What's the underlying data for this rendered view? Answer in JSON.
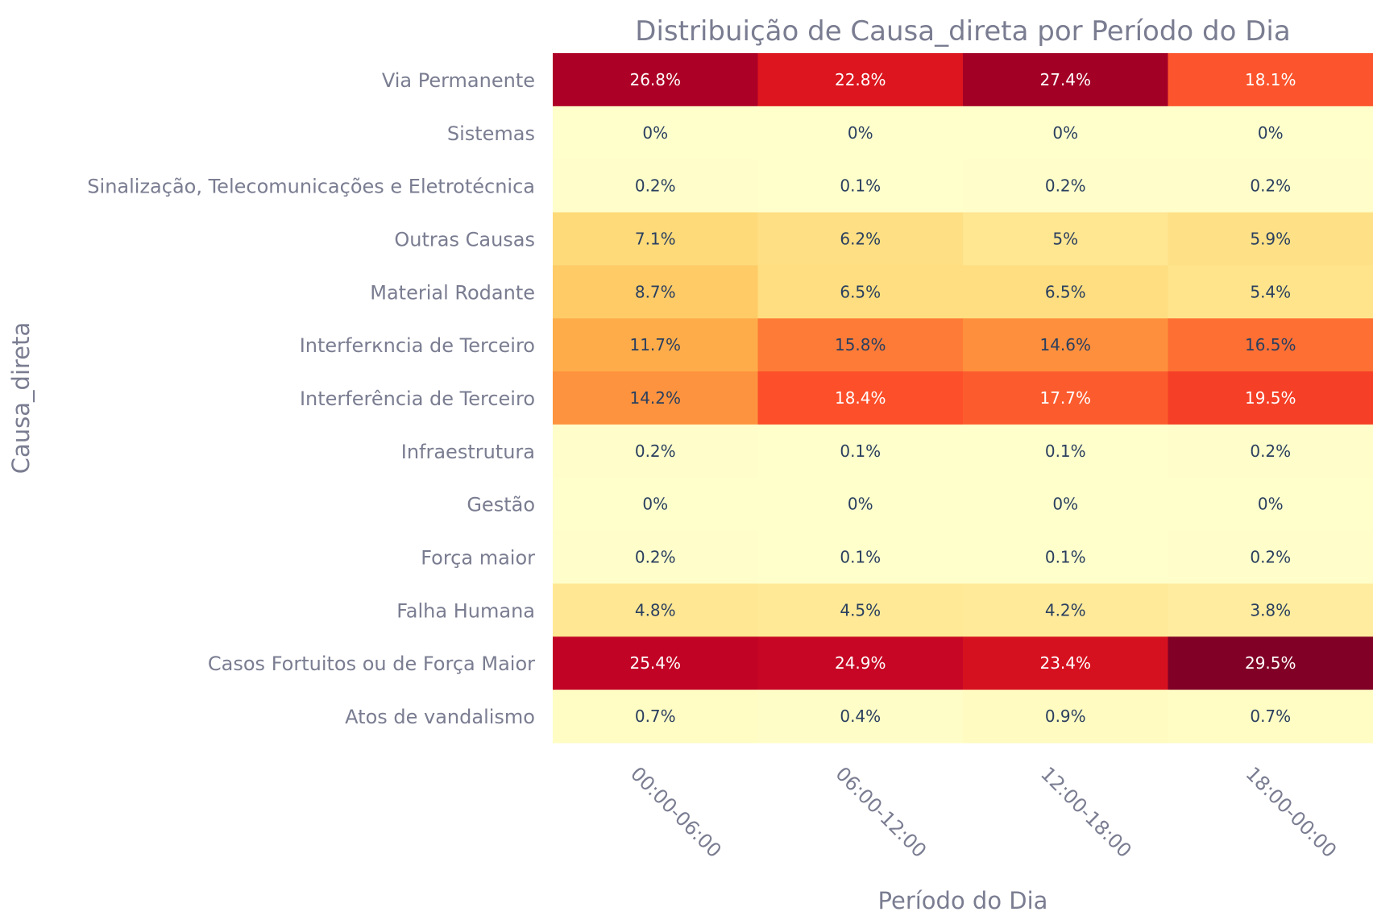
{
  "chart_data": {
    "type": "heatmap",
    "title": "Distribuição de Causa_direta por Período do Dia",
    "xlabel": "Período do Dia",
    "ylabel": "Causa_direta",
    "x": [
      "00:00-06:00",
      "06:00-12:00",
      "12:00-18:00",
      "18:00-00:00"
    ],
    "y": [
      "Via Permanente",
      "Sistemas",
      "Sinalização, Telecomunicações e Eletrotécnica",
      "Outras Causas",
      "Material Rodante",
      "Interferкncia de Terceiro",
      "Interferência de Terceiro",
      "Infraestrutura",
      "Gestão",
      "Força maior",
      "Falha Humana",
      "Casos Fortuitos ou de Força Maior",
      "Atos de vandalismo"
    ],
    "values": [
      [
        26.8,
        22.8,
        27.4,
        18.1
      ],
      [
        0,
        0,
        0,
        0
      ],
      [
        0.2,
        0.1,
        0.2,
        0.2
      ],
      [
        7.1,
        6.2,
        5,
        5.9
      ],
      [
        8.7,
        6.5,
        6.5,
        5.4
      ],
      [
        11.7,
        15.8,
        14.6,
        16.5
      ],
      [
        14.2,
        18.4,
        17.7,
        19.5
      ],
      [
        0.2,
        0.1,
        0.1,
        0.2
      ],
      [
        0,
        0,
        0,
        0
      ],
      [
        0.2,
        0.1,
        0.1,
        0.2
      ],
      [
        4.8,
        4.5,
        4.2,
        3.8
      ],
      [
        25.4,
        24.9,
        23.4,
        29.5
      ],
      [
        0.7,
        0.4,
        0.9,
        0.7
      ]
    ],
    "labels": [
      [
        "26.8%",
        "22.8%",
        "27.4%",
        "18.1%"
      ],
      [
        "0%",
        "0%",
        "0%",
        "0%"
      ],
      [
        "0.2%",
        "0.1%",
        "0.2%",
        "0.2%"
      ],
      [
        "7.1%",
        "6.2%",
        "5%",
        "5.9%"
      ],
      [
        "8.7%",
        "6.5%",
        "6.5%",
        "5.4%"
      ],
      [
        "11.7%",
        "15.8%",
        "14.6%",
        "16.5%"
      ],
      [
        "14.2%",
        "18.4%",
        "17.7%",
        "19.5%"
      ],
      [
        "0.2%",
        "0.1%",
        "0.1%",
        "0.2%"
      ],
      [
        "0%",
        "0%",
        "0%",
        "0%"
      ],
      [
        "0.2%",
        "0.1%",
        "0.1%",
        "0.2%"
      ],
      [
        "4.8%",
        "4.5%",
        "4.2%",
        "3.8%"
      ],
      [
        "25.4%",
        "24.9%",
        "23.4%",
        "29.5%"
      ],
      [
        "0.7%",
        "0.4%",
        "0.9%",
        "0.7%"
      ]
    ],
    "colorscale": [
      "#ffffcc",
      "#ffeda0",
      "#fed976",
      "#feb24c",
      "#fd8d3c",
      "#fc4e2a",
      "#e31a1c",
      "#bd0026",
      "#800026"
    ],
    "zlim": [
      0,
      29.5
    ],
    "colorbar": false,
    "x_tick_rotation": "45deg",
    "grid": false
  }
}
